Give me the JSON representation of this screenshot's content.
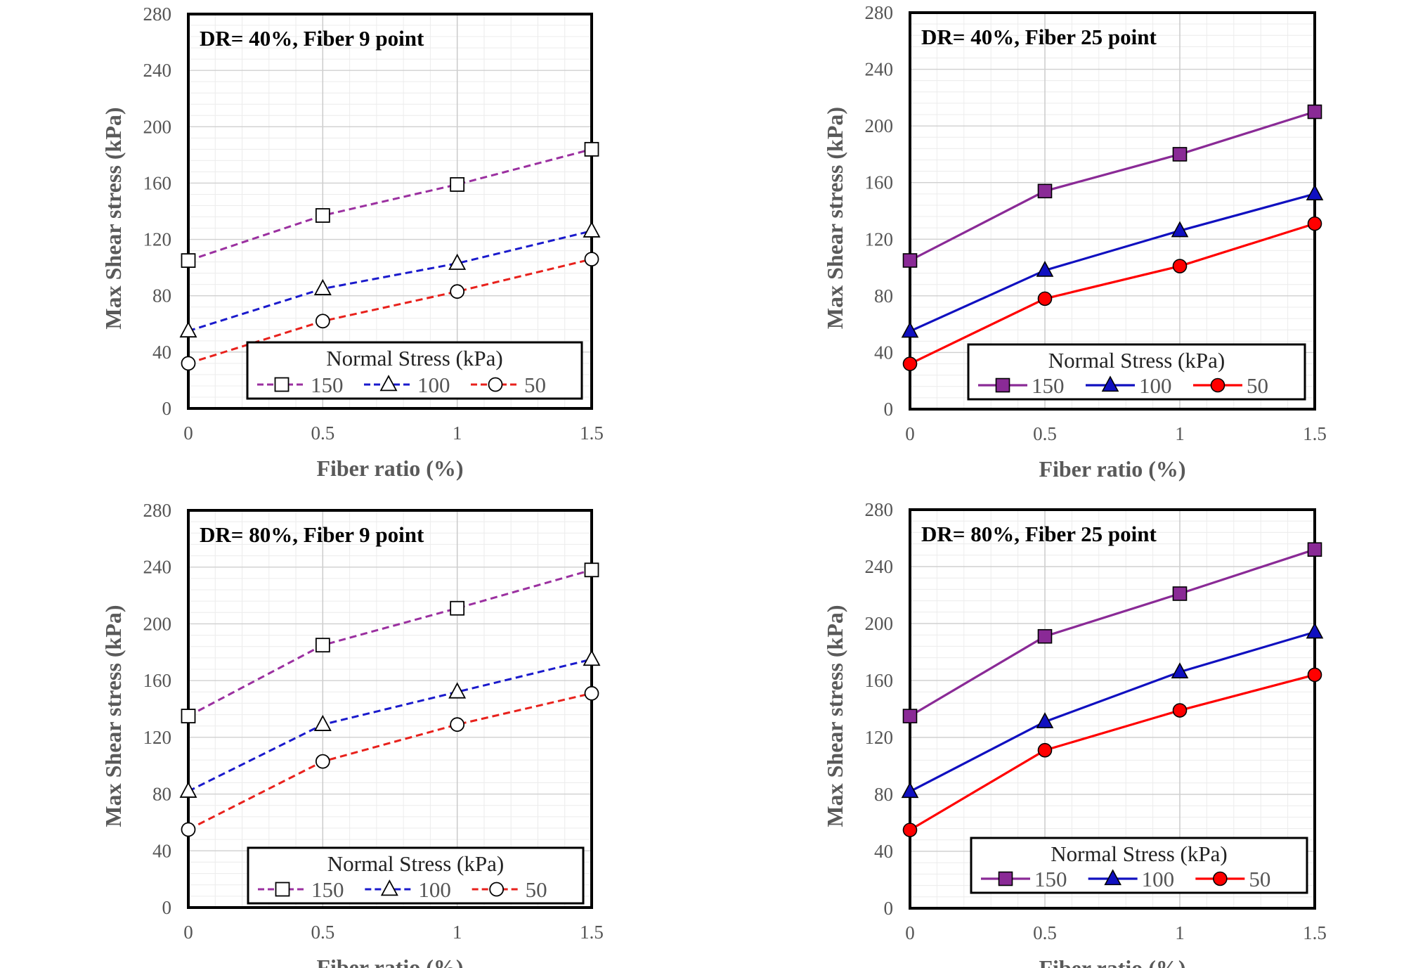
{
  "chart_data": [
    {
      "type": "line",
      "title": "DR= 40%, Fiber 9 point",
      "xlabel": "Fiber ratio (%)",
      "ylabel": "Max Shear stress (kPa)",
      "x": [
        0,
        0.5,
        1,
        1.5
      ],
      "x_tick_labels": [
        "0",
        "0.5",
        "1",
        "1.5"
      ],
      "y_ticks": [
        0,
        40,
        80,
        120,
        160,
        200,
        240,
        280
      ],
      "xlim": [
        0,
        1.5
      ],
      "ylim": [
        0,
        280
      ],
      "grid": true,
      "line_style": "dashed",
      "marker_fill": "open",
      "legend_title": "Normal Stress (kPa)",
      "legend_position": "bottom-right",
      "series": [
        {
          "name": "150",
          "values": [
            105,
            137,
            159,
            184
          ],
          "color": "#9B30A0",
          "marker": "square"
        },
        {
          "name": "100",
          "values": [
            55,
            85,
            103,
            126
          ],
          "color": "#1A1ACC",
          "marker": "triangle"
        },
        {
          "name": "50",
          "values": [
            32,
            62,
            83,
            106
          ],
          "color": "#E8211C",
          "marker": "circle"
        }
      ]
    },
    {
      "type": "line",
      "title": "DR= 40%, Fiber 25 point",
      "xlabel": "Fiber ratio (%)",
      "ylabel": "Max Shear stress (kPa)",
      "x": [
        0,
        0.5,
        1,
        1.5
      ],
      "x_tick_labels": [
        "0",
        "0.5",
        "1",
        "1.5"
      ],
      "y_ticks": [
        0,
        40,
        80,
        120,
        160,
        200,
        240,
        280
      ],
      "xlim": [
        0,
        1.5
      ],
      "ylim": [
        0,
        280
      ],
      "grid": true,
      "line_style": "solid",
      "marker_fill": "filled",
      "legend_title": "Normal Stress (kPa)",
      "legend_position": "bottom-right",
      "series": [
        {
          "name": "150",
          "values": [
            105,
            154,
            180,
            210
          ],
          "color": "#8A2A96",
          "marker": "square"
        },
        {
          "name": "100",
          "values": [
            55,
            98,
            126,
            152
          ],
          "color": "#1010C0",
          "marker": "triangle"
        },
        {
          "name": "50",
          "values": [
            32,
            78,
            101,
            131
          ],
          "color": "#FF0000",
          "marker": "circle"
        }
      ]
    },
    {
      "type": "line",
      "title": "DR= 80%, Fiber 9 point",
      "xlabel": "Fiber ratio (%)",
      "ylabel": "Max Shear stress (kPa)",
      "x": [
        0,
        0.5,
        1,
        1.5
      ],
      "x_tick_labels": [
        "0",
        "0.5",
        "1",
        "1.5"
      ],
      "y_ticks": [
        0,
        40,
        80,
        120,
        160,
        200,
        240,
        280
      ],
      "xlim": [
        0,
        1.5
      ],
      "ylim": [
        0,
        280
      ],
      "grid": true,
      "line_style": "dashed",
      "marker_fill": "open",
      "legend_title": "Normal Stress (kPa)",
      "legend_position": "bottom-right",
      "series": [
        {
          "name": "150",
          "values": [
            135,
            185,
            211,
            238
          ],
          "color": "#9B30A0",
          "marker": "square"
        },
        {
          "name": "100",
          "values": [
            82,
            129,
            152,
            175
          ],
          "color": "#1A1ACC",
          "marker": "triangle"
        },
        {
          "name": "50",
          "values": [
            55,
            103,
            129,
            151
          ],
          "color": "#E8211C",
          "marker": "circle"
        }
      ]
    },
    {
      "type": "line",
      "title": "DR= 80%, Fiber 25 point",
      "xlabel": "Fiber ratio (%)",
      "ylabel": "Max Shear stress (kPa)",
      "x": [
        0,
        0.5,
        1,
        1.5
      ],
      "x_tick_labels": [
        "0",
        "0.5",
        "1",
        "1.5"
      ],
      "y_ticks": [
        0,
        40,
        80,
        120,
        160,
        200,
        240,
        280
      ],
      "xlim": [
        0,
        1.5
      ],
      "ylim": [
        0,
        280
      ],
      "grid": true,
      "line_style": "solid",
      "marker_fill": "filled",
      "legend_title": "Normal Stress (kPa)",
      "legend_position": "bottom-right",
      "series": [
        {
          "name": "150",
          "values": [
            135,
            191,
            221,
            252
          ],
          "color": "#8A2A96",
          "marker": "square"
        },
        {
          "name": "100",
          "values": [
            82,
            131,
            166,
            194
          ],
          "color": "#1010C0",
          "marker": "triangle"
        },
        {
          "name": "50",
          "values": [
            55,
            111,
            139,
            164
          ],
          "color": "#FF0000",
          "marker": "circle"
        }
      ]
    }
  ]
}
